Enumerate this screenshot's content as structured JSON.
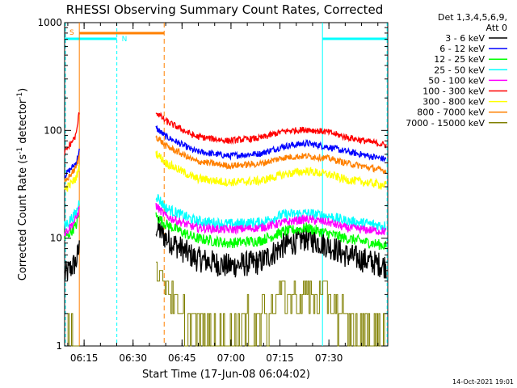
{
  "chart_data": {
    "type": "line",
    "title": "RHESSI Observing Summary Count Rates, Corrected",
    "xlabel": "Start Time (17-Jun-08 06:04:02)",
    "ylabel_main": "Corrected Count Rate (s",
    "ylabel_sup1": "-1",
    "ylabel_mid": " detector",
    "ylabel_sup2": "-1",
    "ylabel_end": ")",
    "yscale": "log",
    "ylim": [
      1,
      1000
    ],
    "y_ticks": [
      {
        "value": 1,
        "label": "1"
      },
      {
        "value": 10,
        "label": "10"
      },
      {
        "value": 100,
        "label": "100"
      },
      {
        "value": 1000,
        "label": "1000"
      }
    ],
    "xlim": [
      5.0,
      104.0
    ],
    "x_unit": "minutes after 06:04:02",
    "x_ticks": [
      {
        "value": 10.97,
        "label": "06:15"
      },
      {
        "value": 25.97,
        "label": "06:30"
      },
      {
        "value": 40.97,
        "label": "06:45"
      },
      {
        "value": 55.97,
        "label": "07:00"
      },
      {
        "value": 70.97,
        "label": "07:15"
      },
      {
        "value": 85.97,
        "label": "07:30"
      }
    ],
    "legend": {
      "position": "outside-right",
      "header_line1": "Det 1,3,4,5,6,9,",
      "header_line2": "Att 0"
    },
    "series": [
      {
        "name": "3 - 6 keV",
        "color": "#000000",
        "noise": 0.12,
        "x": [
          5.0,
          8.5,
          9.5,
          33.0,
          36.0,
          45.0,
          55.0,
          65.0,
          72.0,
          79.0,
          86.0,
          91.0,
          103.5
        ],
        "y": [
          4.5,
          6.0,
          8.0,
          13.0,
          10.0,
          6.5,
          5.5,
          6.0,
          8.5,
          10.0,
          8.5,
          7.0,
          5.5
        ]
      },
      {
        "name": "6 - 12 keV",
        "color": "#0000ff",
        "noise": 0.03,
        "x": [
          5.0,
          8.5,
          9.5,
          33.0,
          36.0,
          45.0,
          55.0,
          65.0,
          72.0,
          79.0,
          86.0,
          91.0,
          103.5
        ],
        "y": [
          38.0,
          50.0,
          65.0,
          105.0,
          88.0,
          64.0,
          58.0,
          61.0,
          71.0,
          76.0,
          70.0,
          64.0,
          54.0
        ]
      },
      {
        "name": "12 - 25 keV",
        "color": "#00ff00",
        "noise": 0.05,
        "x": [
          5.0,
          8.5,
          9.5,
          33.0,
          36.0,
          45.0,
          55.0,
          65.0,
          72.0,
          79.0,
          86.0,
          91.0,
          103.5
        ],
        "y": [
          10.0,
          13.0,
          17.0,
          16.0,
          13.5,
          10.0,
          9.0,
          9.5,
          11.5,
          12.5,
          11.0,
          10.0,
          8.5
        ]
      },
      {
        "name": "25 - 50 keV",
        "color": "#00ffff",
        "noise": 0.05,
        "x": [
          5.0,
          8.5,
          9.5,
          33.0,
          36.0,
          45.0,
          55.0,
          65.0,
          72.0,
          79.0,
          86.0,
          91.0,
          103.5
        ],
        "y": [
          13.0,
          17.0,
          22.0,
          25.0,
          19.0,
          14.5,
          13.5,
          14.0,
          16.5,
          17.0,
          16.0,
          14.5,
          13.0
        ]
      },
      {
        "name": "50 - 100 keV",
        "color": "#ff00ff",
        "noise": 0.04,
        "x": [
          5.0,
          8.5,
          9.5,
          33.0,
          36.0,
          45.0,
          55.0,
          65.0,
          72.0,
          79.0,
          86.0,
          91.0,
          103.5
        ],
        "y": [
          11.0,
          15.0,
          19.0,
          20.0,
          16.0,
          12.5,
          12.0,
          12.5,
          14.0,
          15.0,
          14.0,
          12.5,
          11.5
        ]
      },
      {
        "name": "100 - 300 keV",
        "color": "#ff0000",
        "noise": 0.03,
        "x": [
          5.0,
          8.5,
          9.5,
          33.0,
          36.0,
          45.0,
          55.0,
          65.0,
          72.0,
          79.0,
          86.0,
          91.0,
          103.5
        ],
        "y": [
          62.0,
          90.0,
          150.0,
          148.0,
          122.0,
          88.0,
          80.0,
          85.0,
          98.0,
          102.0,
          96.0,
          87.0,
          73.0
        ]
      },
      {
        "name": "300 - 800 keV",
        "color": "#ffff00",
        "noise": 0.04,
        "x": [
          5.0,
          8.5,
          9.5,
          33.0,
          36.0,
          45.0,
          55.0,
          65.0,
          72.0,
          79.0,
          86.0,
          91.0,
          103.5
        ],
        "y": [
          28.0,
          36.0,
          46.0,
          62.0,
          50.0,
          36.0,
          33.0,
          34.0,
          39.0,
          42.0,
          39.0,
          35.0,
          31.0
        ]
      },
      {
        "name": "800 - 7000 keV",
        "color": "#ff8000",
        "noise": 0.03,
        "x": [
          5.0,
          8.5,
          9.5,
          33.0,
          36.0,
          45.0,
          55.0,
          65.0,
          72.0,
          79.0,
          86.0,
          91.0,
          103.5
        ],
        "y": [
          33.0,
          45.0,
          58.0,
          88.0,
          72.0,
          52.0,
          47.0,
          49.0,
          56.0,
          58.0,
          55.0,
          50.0,
          42.0
        ]
      },
      {
        "name": "7000 - 15000 keV",
        "color": "#808000",
        "noise": 0.0,
        "style": "step",
        "x": [
          5.0,
          8.5,
          9.5,
          33.0,
          36.0,
          38.0,
          40.0,
          42.0,
          55.0,
          65.0,
          72.0,
          79.0,
          86.0,
          91.0,
          103.5
        ],
        "y": [
          1.0,
          1.0,
          2.0,
          5.0,
          4.0,
          3.0,
          2.0,
          1.5,
          1.0,
          2.0,
          3.0,
          3.0,
          3.0,
          1.5,
          1.0
        ]
      }
    ],
    "flags": {
      "saa_label": "S",
      "saa_color": "#ff8000",
      "night_label": "N",
      "night_color": "#00ffff",
      "night_intervals": [
        [
          5.0,
          21.0
        ],
        [
          84.0,
          103.8
        ]
      ],
      "saa_intervals": [
        [
          9.5,
          35.5
        ]
      ],
      "night_boundaries": [
        5.0,
        21.0,
        84.0,
        103.8
      ],
      "saa_boundaries": [
        9.5,
        35.5
      ],
      "data_gap": [
        9.5,
        33.0
      ]
    }
  },
  "footer": {
    "timestamp": "14-Oct-2021 19:01"
  }
}
